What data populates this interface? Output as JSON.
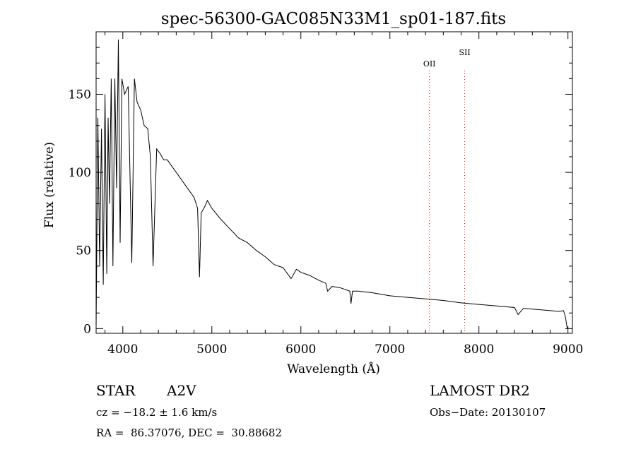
{
  "chart_data": {
    "type": "line",
    "title": "spec-56300-GAC085N33M1_sp01-187.fits",
    "xlabel": "Wavelength (Å)",
    "ylabel": "Flux (relative)",
    "xlim": [
      3700,
      9050
    ],
    "ylim": [
      -3,
      190
    ],
    "x_ticks": [
      4000,
      5000,
      6000,
      7000,
      8000,
      9000
    ],
    "x_tick_labels": [
      "4000",
      "5000",
      "6000",
      "7000",
      "8000",
      "9000"
    ],
    "y_ticks": [
      0,
      50,
      100,
      150
    ],
    "y_tick_labels": [
      "0",
      "50",
      "100",
      "150"
    ],
    "grid": false,
    "series": [
      {
        "x": [
          3700,
          3720,
          3740,
          3760,
          3780,
          3800,
          3820,
          3835,
          3850,
          3870,
          3889,
          3910,
          3930,
          3950,
          3970,
          3990,
          4020,
          4060,
          4101,
          4130,
          4160,
          4200,
          4240,
          4280,
          4310,
          4340,
          4380,
          4420,
          4460,
          4500,
          4550,
          4600,
          4650,
          4700,
          4750,
          4800,
          4840,
          4861,
          4880,
          4920,
          4950,
          5000,
          5100,
          5200,
          5300,
          5400,
          5500,
          5600,
          5700,
          5800,
          5890,
          5950,
          6000,
          6100,
          6200,
          6280,
          6300,
          6350,
          6450,
          6550,
          6563,
          6580,
          6650,
          6800,
          7000,
          7200,
          7400,
          7600,
          7800,
          8000,
          8200,
          8400,
          8440,
          8500,
          8600,
          8700,
          8800,
          8900,
          8950,
          8970,
          8990,
          9000
        ],
        "y": [
          0,
          135,
          40,
          128,
          28,
          150,
          35,
          135,
          80,
          160,
          40,
          160,
          90,
          185,
          55,
          160,
          150,
          155,
          42,
          160,
          145,
          140,
          130,
          128,
          110,
          40,
          115,
          112,
          108,
          108,
          104,
          100,
          96,
          92,
          88,
          84,
          77,
          33,
          74,
          78,
          82,
          77,
          70,
          64,
          58,
          55,
          50,
          46,
          41,
          39,
          32,
          38,
          36,
          34,
          31,
          29,
          24,
          27,
          26,
          24,
          16,
          24,
          24,
          23,
          21,
          20,
          19,
          18,
          16.5,
          15.5,
          14.5,
          13.5,
          9,
          13,
          12.5,
          12,
          11.5,
          11,
          11.5,
          8,
          1,
          0
        ]
      }
    ],
    "annotations": [
      {
        "label": "OII",
        "x": 7444
      },
      {
        "label": "SII",
        "x": 7840
      }
    ],
    "colors": {
      "spectrum": "#000000",
      "marker": "#ff0000"
    }
  },
  "info": {
    "object_type": "STAR",
    "subclass": "A2V",
    "survey": "LAMOST DR2",
    "cz": "cz = −18.2 ± 1.6 km/s",
    "obs_date": "Obs−Date: 20130107",
    "coords": "RA =  86.37076, DEC =  30.88682"
  }
}
